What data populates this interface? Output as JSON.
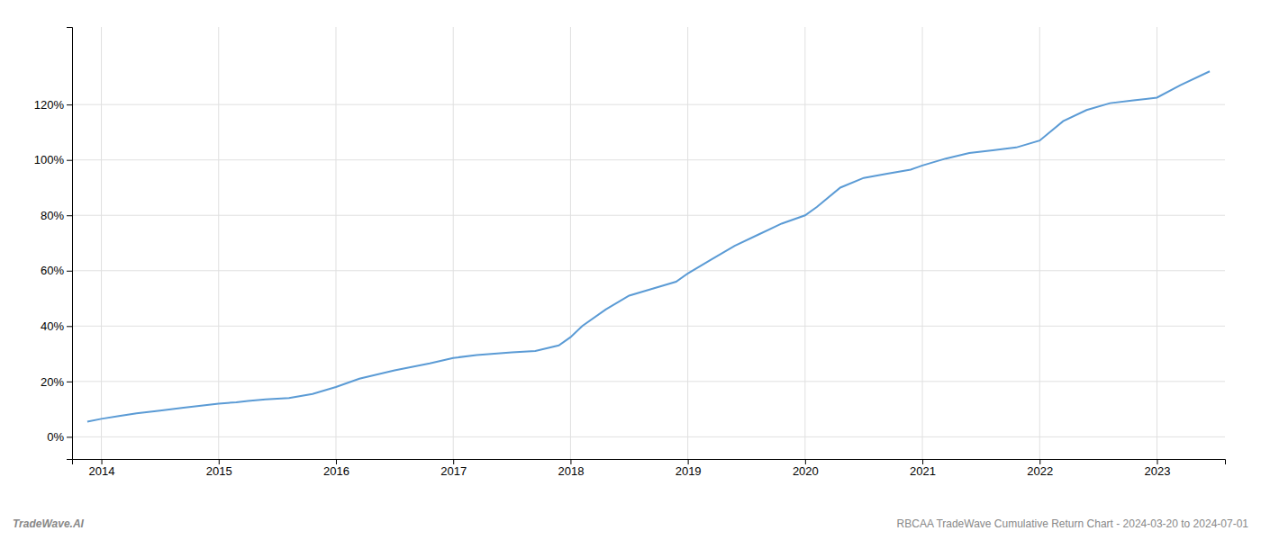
{
  "chart_data": {
    "type": "line",
    "title": "RBCAA TradeWave Cumulative Return Chart - 2024-03-20 to 2024-07-01",
    "annotations": [
      "TradeWave.AI"
    ],
    "color": "#5b9bd5",
    "grid": true,
    "xlim": [
      2013.75,
      2023.58
    ],
    "ylim": [
      -8,
      148
    ],
    "xticks": [
      2014,
      2015,
      2016,
      2017,
      2018,
      2019,
      2020,
      2021,
      2022,
      2023
    ],
    "yticks": [
      {
        "value": 0,
        "label": "0%"
      },
      {
        "value": 20,
        "label": "20%"
      },
      {
        "value": 40,
        "label": "40%"
      },
      {
        "value": 60,
        "label": "60%"
      },
      {
        "value": 80,
        "label": "80%"
      },
      {
        "value": 100,
        "label": "100%"
      },
      {
        "value": 120,
        "label": "120%"
      }
    ],
    "x": [
      2013.88,
      2014.0,
      2014.15,
      2014.3,
      2014.5,
      2014.7,
      2014.9,
      2015.0,
      2015.15,
      2015.25,
      2015.4,
      2015.6,
      2015.8,
      2016.0,
      2016.2,
      2016.5,
      2016.8,
      2017.0,
      2017.2,
      2017.5,
      2017.7,
      2017.9,
      2018.0,
      2018.1,
      2018.3,
      2018.5,
      2018.7,
      2018.9,
      2019.0,
      2019.2,
      2019.4,
      2019.6,
      2019.8,
      2020.0,
      2020.1,
      2020.3,
      2020.5,
      2020.7,
      2020.9,
      2021.0,
      2021.2,
      2021.4,
      2021.6,
      2021.8,
      2022.0,
      2022.2,
      2022.4,
      2022.6,
      2022.8,
      2023.0,
      2023.2,
      2023.45
    ],
    "values": [
      5.5,
      6.5,
      7.5,
      8.5,
      9.5,
      10.5,
      11.5,
      12.0,
      12.5,
      13.0,
      13.5,
      14.0,
      15.5,
      18.0,
      21.0,
      24.0,
      26.5,
      28.5,
      29.5,
      30.5,
      31.0,
      33.0,
      36.0,
      40.0,
      46.0,
      51.0,
      53.5,
      56.0,
      59.0,
      64.0,
      69.0,
      73.0,
      77.0,
      80.0,
      83.0,
      90.0,
      93.5,
      95.0,
      96.5,
      98.0,
      100.5,
      102.5,
      103.5,
      104.5,
      107.0,
      114.0,
      118.0,
      120.5,
      121.5,
      122.5,
      127.0,
      132.0
    ]
  }
}
